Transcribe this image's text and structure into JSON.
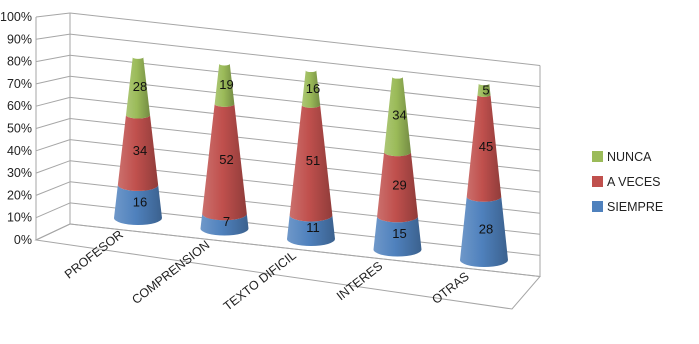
{
  "chart_data": {
    "type": "bar",
    "shape": "3d-stacked-cone",
    "stacking": "percent",
    "categories": [
      "PROFESOR",
      "COMPRENSION",
      "TEXTO DIFICIL",
      "INTERES",
      "OTRAS"
    ],
    "series": [
      {
        "name": "SIEMPRE",
        "values": [
          16,
          7,
          11,
          15,
          28
        ],
        "color": "#4f81bd"
      },
      {
        "name": "A VECES",
        "values": [
          34,
          52,
          51,
          29,
          45
        ],
        "color": "#c0504d"
      },
      {
        "name": "NUNCA",
        "values": [
          28,
          19,
          16,
          34,
          5
        ],
        "color": "#9bbb59"
      }
    ],
    "yticks": [
      "0%",
      "10%",
      "20%",
      "30%",
      "40%",
      "50%",
      "60%",
      "70%",
      "80%",
      "90%",
      "100%"
    ],
    "ylim": [
      0,
      100
    ],
    "title": "",
    "xlabel": "",
    "ylabel": "",
    "grid": true,
    "legend": "right"
  }
}
